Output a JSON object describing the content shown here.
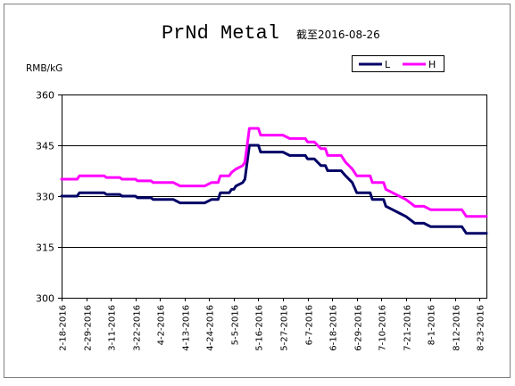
{
  "chart_data": {
    "type": "line",
    "title": "PrNd Metal",
    "subtitle": "截至2016-08-26",
    "ylabel": "RMB/kG",
    "xlabel": "",
    "ylim": [
      300,
      360
    ],
    "yticks": [
      300,
      315,
      330,
      345,
      360
    ],
    "grid": true,
    "legend_position": "top-right",
    "xticks": [
      "2-18-2016",
      "2-29-2016",
      "3-11-2016",
      "3-22-2016",
      "4-2-2016",
      "4-13-2016",
      "4-24-2016",
      "5-5-2016",
      "5-16-2016",
      "5-27-2016",
      "6-7-2016",
      "6-18-2016",
      "6-29-2016",
      "7-10-2016",
      "7-21-2016",
      "8-1-2016",
      "8-12-2016",
      "8-23-2016"
    ],
    "series": [
      {
        "name": "L",
        "color": "#000066",
        "points": [
          [
            "2016-02-18",
            330
          ],
          [
            "2016-02-25",
            330
          ],
          [
            "2016-02-26",
            331
          ],
          [
            "2016-03-08",
            331
          ],
          [
            "2016-03-09",
            330.5
          ],
          [
            "2016-03-15",
            330.5
          ],
          [
            "2016-03-16",
            330
          ],
          [
            "2016-03-22",
            330
          ],
          [
            "2016-03-23",
            329.5
          ],
          [
            "2016-03-29",
            329.5
          ],
          [
            "2016-03-30",
            329
          ],
          [
            "2016-04-08",
            329
          ],
          [
            "2016-04-11",
            328
          ],
          [
            "2016-04-22",
            328
          ],
          [
            "2016-04-25",
            329
          ],
          [
            "2016-04-28",
            329
          ],
          [
            "2016-04-29",
            331
          ],
          [
            "2016-05-03",
            331
          ],
          [
            "2016-05-04",
            332
          ],
          [
            "2016-05-05",
            332
          ],
          [
            "2016-05-06",
            333
          ],
          [
            "2016-05-09",
            334
          ],
          [
            "2016-05-10",
            335
          ],
          [
            "2016-05-11",
            340
          ],
          [
            "2016-05-12",
            345
          ],
          [
            "2016-05-16",
            345
          ],
          [
            "2016-05-17",
            343
          ],
          [
            "2016-05-27",
            343
          ],
          [
            "2016-05-30",
            342
          ],
          [
            "2016-06-06",
            342
          ],
          [
            "2016-06-07",
            341
          ],
          [
            "2016-06-10",
            341
          ],
          [
            "2016-06-13",
            339
          ],
          [
            "2016-06-15",
            339
          ],
          [
            "2016-06-16",
            337.5
          ],
          [
            "2016-06-22",
            337.5
          ],
          [
            "2016-06-24",
            336
          ],
          [
            "2016-06-27",
            334
          ],
          [
            "2016-06-29",
            331
          ],
          [
            "2016-07-05",
            331
          ],
          [
            "2016-07-06",
            329
          ],
          [
            "2016-07-11",
            329
          ],
          [
            "2016-07-12",
            327
          ],
          [
            "2016-07-15",
            326
          ],
          [
            "2016-07-18",
            325
          ],
          [
            "2016-07-21",
            324
          ],
          [
            "2016-07-25",
            322
          ],
          [
            "2016-07-29",
            322
          ],
          [
            "2016-08-01",
            321
          ],
          [
            "2016-08-15",
            321
          ],
          [
            "2016-08-17",
            319
          ],
          [
            "2016-08-26",
            319
          ]
        ]
      },
      {
        "name": "H",
        "color": "#ff00ff",
        "points": [
          [
            "2016-02-18",
            335
          ],
          [
            "2016-02-25",
            335
          ],
          [
            "2016-02-26",
            336
          ],
          [
            "2016-03-08",
            336
          ],
          [
            "2016-03-09",
            335.5
          ],
          [
            "2016-03-15",
            335.5
          ],
          [
            "2016-03-16",
            335
          ],
          [
            "2016-03-22",
            335
          ],
          [
            "2016-03-23",
            334.5
          ],
          [
            "2016-03-29",
            334.5
          ],
          [
            "2016-03-30",
            334
          ],
          [
            "2016-04-08",
            334
          ],
          [
            "2016-04-11",
            333
          ],
          [
            "2016-04-22",
            333
          ],
          [
            "2016-04-25",
            334
          ],
          [
            "2016-04-28",
            334
          ],
          [
            "2016-04-29",
            336
          ],
          [
            "2016-05-03",
            336
          ],
          [
            "2016-05-04",
            337
          ],
          [
            "2016-05-06",
            338
          ],
          [
            "2016-05-09",
            339
          ],
          [
            "2016-05-10",
            340
          ],
          [
            "2016-05-11",
            345
          ],
          [
            "2016-05-12",
            350
          ],
          [
            "2016-05-16",
            350
          ],
          [
            "2016-05-17",
            348
          ],
          [
            "2016-05-27",
            348
          ],
          [
            "2016-05-30",
            347
          ],
          [
            "2016-06-06",
            347
          ],
          [
            "2016-06-07",
            346
          ],
          [
            "2016-06-10",
            346
          ],
          [
            "2016-06-13",
            344
          ],
          [
            "2016-06-15",
            344
          ],
          [
            "2016-06-16",
            342
          ],
          [
            "2016-06-22",
            342
          ],
          [
            "2016-06-24",
            340
          ],
          [
            "2016-06-27",
            338
          ],
          [
            "2016-06-29",
            336
          ],
          [
            "2016-07-05",
            336
          ],
          [
            "2016-07-06",
            334
          ],
          [
            "2016-07-11",
            334
          ],
          [
            "2016-07-12",
            332
          ],
          [
            "2016-07-15",
            331
          ],
          [
            "2016-07-18",
            330
          ],
          [
            "2016-07-21",
            329
          ],
          [
            "2016-07-25",
            327
          ],
          [
            "2016-07-29",
            327
          ],
          [
            "2016-08-01",
            326
          ],
          [
            "2016-08-15",
            326
          ],
          [
            "2016-08-17",
            324
          ],
          [
            "2016-08-26",
            324
          ]
        ]
      }
    ]
  }
}
